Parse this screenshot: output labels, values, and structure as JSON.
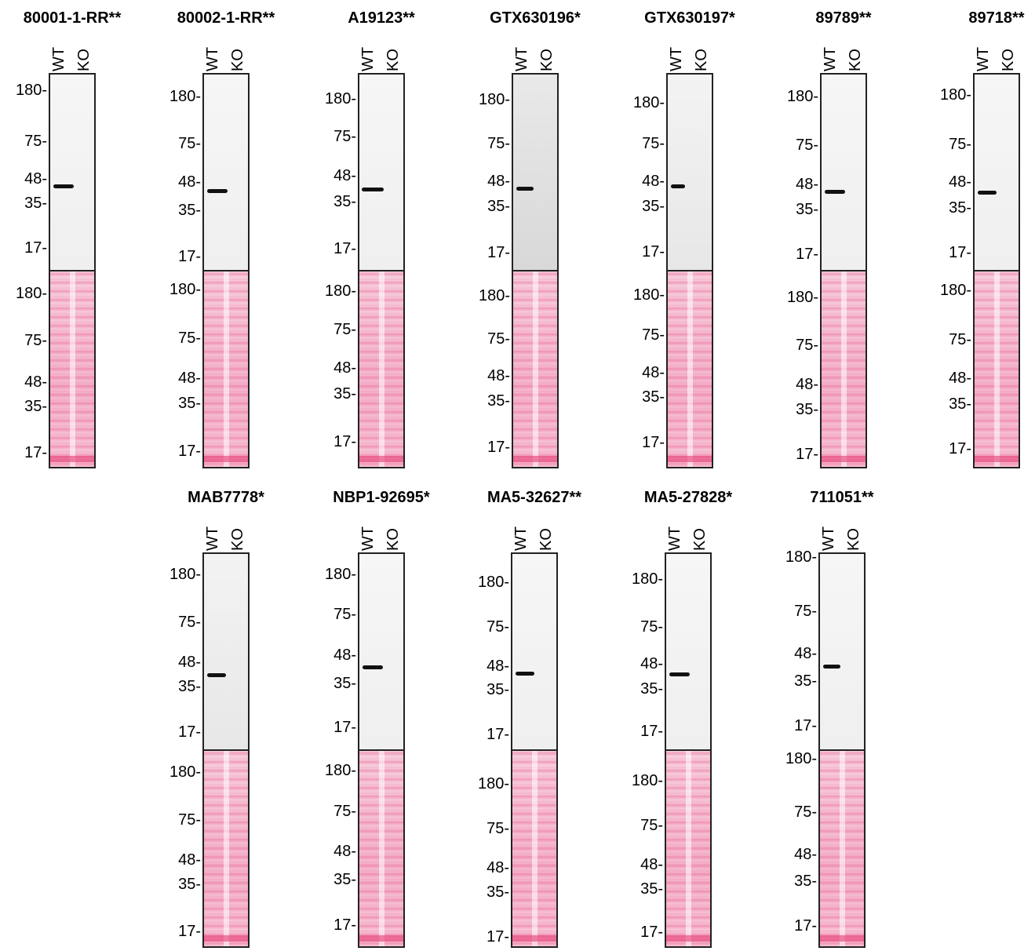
{
  "lane_labels": {
    "wt": "WT",
    "ko": "KO"
  },
  "marker_labels": [
    "180",
    "75",
    "48",
    "35",
    "17"
  ],
  "antibodies": [
    {
      "id": "80001-1-RR**"
    },
    {
      "id": "80002-1-RR**"
    },
    {
      "id": "A19123**"
    },
    {
      "id": "GTX630196*"
    },
    {
      "id": "GTX630197*"
    },
    {
      "id": "89789**"
    },
    {
      "id": "89718**"
    },
    {
      "id": "MAB7778*"
    },
    {
      "id": "NBP1-92695*"
    },
    {
      "id": "MA5-32627**"
    },
    {
      "id": "MA5-27828*"
    },
    {
      "id": "711051**"
    }
  ],
  "colors": {
    "blot_border": "#222222",
    "band": "#111111",
    "ponceau": "#f4b8cf"
  }
}
